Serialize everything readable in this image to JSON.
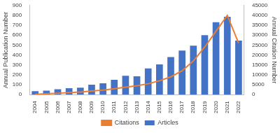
{
  "chart_data": {
    "type": "bar",
    "categories": [
      "2004",
      "2005",
      "2006",
      "2007",
      "2008",
      "2009",
      "2010",
      "2011",
      "2012",
      "2013",
      "2014",
      "2015",
      "2016",
      "2017",
      "2018",
      "2019",
      "2020",
      "2021",
      "2022"
    ],
    "series": [
      {
        "name": "Articles",
        "type": "bar",
        "color": "#4472c4",
        "values": [
          35,
          40,
          55,
          65,
          70,
          100,
          115,
          150,
          190,
          185,
          265,
          305,
          380,
          445,
          495,
          600,
          730,
          785,
          545
        ]
      },
      {
        "name": "Citations",
        "type": "line",
        "color": "#ed7d31",
        "axis": "y2",
        "marker": "none",
        "values": [
          200,
          400,
          700,
          1000,
          1300,
          1800,
          2300,
          3000,
          3800,
          4500,
          5500,
          7000,
          9000,
          12000,
          17000,
          24000,
          32000,
          40000,
          26000
        ]
      }
    ],
    "y_label": "Annual Publication Number",
    "y2_label": "Annual Citation Number",
    "ylim": [
      0,
      900
    ],
    "yticks": [
      0,
      100,
      200,
      300,
      400,
      500,
      600,
      700,
      800,
      900
    ],
    "y2lim": [
      0,
      45000
    ],
    "y2ticks": [
      0,
      5000,
      10000,
      15000,
      20000,
      25000,
      30000,
      35000,
      40000,
      45000
    ],
    "grid": false,
    "legend": "bottom"
  }
}
